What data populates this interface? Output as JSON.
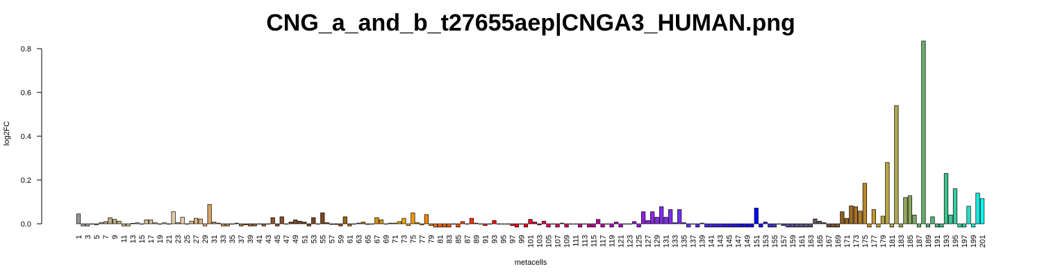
{
  "chart_data": {
    "type": "bar",
    "title": "CNG_a_and_b_t27655aep|CNGA3_HUMAN.png",
    "xlabel": "metacells",
    "ylabel": "log2FC",
    "categories": [
      1,
      null,
      3,
      null,
      5,
      null,
      7,
      null,
      9,
      null,
      11,
      null,
      13,
      null,
      15,
      null,
      17,
      null,
      19,
      null,
      21,
      null,
      23,
      null,
      25,
      null,
      27,
      null,
      29,
      null,
      31,
      null,
      33,
      null,
      35,
      null,
      37,
      null,
      39,
      null,
      41,
      null,
      43,
      null,
      45,
      null,
      47,
      null,
      49,
      null,
      51,
      null,
      53,
      null,
      55,
      null,
      57,
      null,
      59,
      null,
      61,
      null,
      63,
      null,
      65,
      null,
      67,
      null,
      69,
      null,
      71,
      null,
      73,
      null,
      75,
      null,
      77,
      null,
      79,
      null,
      81,
      null,
      83,
      null,
      85,
      null,
      87,
      null,
      89,
      null,
      91,
      null,
      93,
      null,
      95,
      null,
      97,
      null,
      99,
      null,
      101,
      null,
      103,
      null,
      105,
      null,
      107,
      null,
      109,
      null,
      111,
      null,
      113,
      null,
      115,
      null,
      117,
      null,
      119,
      null,
      121,
      null,
      123,
      null,
      125,
      null,
      127,
      null,
      129,
      null,
      131,
      null,
      133,
      null,
      135,
      null,
      137,
      null,
      139,
      null,
      141,
      null,
      143,
      null,
      145,
      null,
      147,
      null,
      149,
      null,
      151,
      null,
      153,
      null,
      155,
      null,
      157,
      null,
      159,
      null,
      161,
      null,
      163,
      null,
      165,
      null,
      167,
      null,
      169,
      null,
      171,
      null,
      173,
      null,
      175,
      null,
      177,
      null,
      179,
      null,
      181,
      null,
      183,
      null,
      185,
      null,
      187,
      null,
      189,
      null,
      191,
      null,
      193,
      null,
      195,
      null,
      197,
      null,
      199,
      null,
      201
    ],
    "values": [
      0.045,
      -0.01,
      -0.01,
      0,
      -0.005,
      0.005,
      0.01,
      0.028,
      0.02,
      0.012,
      -0.01,
      -0.01,
      0.002,
      0.005,
      0,
      0.018,
      0.018,
      0.005,
      0,
      0.005,
      0,
      0.055,
      0.005,
      0.03,
      0,
      0.012,
      0.025,
      0.022,
      -0.01,
      0.088,
      0.008,
      0.003,
      -0.01,
      -0.01,
      0,
      0.003,
      -0.01,
      -0.005,
      -0.01,
      -0.01,
      0,
      -0.01,
      0,
      0.028,
      -0.01,
      0.032,
      0,
      0.008,
      0.018,
      0.012,
      0.008,
      -0.01,
      0.028,
      0,
      0.05,
      0.005,
      -0.003,
      -0.003,
      -0.01,
      0.032,
      -0.01,
      0,
      0.003,
      0.008,
      -0.003,
      0,
      0.028,
      0.018,
      0,
      0.003,
      0.003,
      0.01,
      0.025,
      -0.008,
      0.05,
      0.005,
      -0.005,
      0.042,
      -0.008,
      -0.015,
      -0.015,
      -0.015,
      -0.015,
      0,
      -0.015,
      0.01,
      0,
      0.025,
      0.003,
      0,
      -0.008,
      0,
      0.015,
      0,
      0,
      0,
      -0.008,
      -0.015,
      0,
      -0.015,
      0.02,
      0.008,
      -0.005,
      0.012,
      -0.015,
      0,
      -0.015,
      0.003,
      -0.015,
      0,
      0,
      -0.015,
      0,
      -0.015,
      -0.015,
      0.02,
      -0.015,
      0,
      -0.015,
      0.008,
      -0.015,
      0,
      0,
      0.01,
      -0.015,
      0.055,
      0.015,
      0.055,
      0.03,
      0.078,
      0.03,
      0.065,
      0.005,
      0.065,
      0.005,
      -0.015,
      0,
      -0.015,
      0.003,
      -0.015,
      -0.015,
      -0.015,
      -0.015,
      -0.015,
      -0.015,
      -0.015,
      -0.015,
      -0.015,
      -0.015,
      -0.015,
      0.072,
      -0.015,
      0.008,
      -0.015,
      -0.015,
      0,
      -0.008,
      -0.015,
      -0.015,
      -0.015,
      -0.015,
      -0.015,
      -0.015,
      0.022,
      0.012,
      0.005,
      -0.015,
      -0.015,
      -0.015,
      0.055,
      0.025,
      0.082,
      0.078,
      0.058,
      0.185,
      -0.015,
      0.065,
      -0.015,
      0.035,
      0.28,
      -0.015,
      0.54,
      -0.015,
      0.12,
      0.128,
      0.04,
      -0.015,
      0.835,
      -0.015,
      0.032,
      -0.015,
      -0.015,
      0.23,
      0.04,
      0.16,
      -0.015,
      -0.015,
      0.08,
      -0.015,
      0.14,
      0.115
    ],
    "colors": [
      "#999999",
      "#a09d99",
      "#a7a097",
      "#aca394",
      "#b0a58f",
      "#b5a88a",
      "#b9aa85",
      "#bead80",
      "#c1af7d",
      "#c4b17c",
      "#c8b280",
      "#ccb585",
      "#cfb78a",
      "#d2b990",
      "#d4bb95",
      "#d6bd98",
      "#d8bf9b",
      "#dbc19e",
      "#ddc3a1",
      "#dfc5a3",
      "#e2c7a5",
      "#e4c9a8",
      "#e6cbab",
      "#e8ccad",
      "#e6c5a0",
      "#e3be94",
      "#e0b788",
      "#ddb07c",
      "#d9a970",
      "#d5a266",
      "#d09a5c",
      "#cb9354",
      "#c68c4e",
      "#c18549",
      "#bc7e44",
      "#b7783f",
      "#b2723b",
      "#ad6c37",
      "#a86634",
      "#a36131",
      "#9e5c2f",
      "#99582d",
      "#94542c",
      "#8f512b",
      "#8b4f2a",
      "#874d2a",
      "#844b29",
      "#824a28",
      "#804927",
      "#7e4826",
      "#7d4725",
      "#7c4624",
      "#7b4523",
      "#7a4422",
      "#7b4621",
      "#7f4a20",
      "#854f1e",
      "#8c551c",
      "#945b1a",
      "#9d6218",
      "#a66916",
      "#b07014",
      "#b97712",
      "#c27e10",
      "#ca850e",
      "#d18c0c",
      "#d7920a",
      "#dc9708",
      "#e09c06",
      "#e4a004",
      "#e7a302",
      "#eaa500",
      "#eca400",
      "#eea000",
      "#f09a00",
      "#f19300",
      "#f28c00",
      "#f38500",
      "#f47d00",
      "#f57500",
      "#f66d00",
      "#f76500",
      "#f85d00",
      "#f95500",
      "#fa4d00",
      "#fb4500",
      "#fc3d00",
      "#fc3500",
      "#fd2d00",
      "#fd2500",
      "#fe1d00",
      "#fe1500",
      "#fe0e00",
      "#ff0800",
      "#ff0404",
      "#ff000a",
      "#fe0012",
      "#fd001a",
      "#fb0022",
      "#f9002a",
      "#f60032",
      "#f3003a",
      "#f00042",
      "#ec004a",
      "#e80052",
      "#e4005a",
      "#e00062",
      "#dc006a",
      "#d80072",
      "#d4007a",
      "#d00082",
      "#cc0089",
      "#c80090",
      "#c40098",
      "#c0009f",
      "#bc00a6",
      "#b800ad",
      "#b400b4",
      "#b000ba",
      "#ac00c0",
      "#a800c6",
      "#a405cc",
      "#a00ad2",
      "#9c10d8",
      "#9816dd",
      "#941ce2",
      "#9022e6",
      "#8c26e8",
      "#8829e9",
      "#842beb",
      "#802dec",
      "#7c2fed",
      "#7830ee",
      "#7431ef",
      "#7032ef",
      "#6c32ef",
      "#6530f0",
      "#5e2ef1",
      "#572bf2",
      "#5028f3",
      "#4925f4",
      "#4222f5",
      "#3b1ff6",
      "#341bf7",
      "#2d17f8",
      "#2613f9",
      "#1f0ffa",
      "#180bfb",
      "#1107fc",
      "#0a03fd",
      "#0000ff",
      "#2010f0",
      "#3020e0",
      "#3c2ed2",
      "#4638c6",
      "#4d40bb",
      "#5247b0",
      "#564ca6",
      "#5a509c",
      "#5d5392",
      "#605588",
      "#62567e",
      "#645674",
      "#66566a",
      "#685560",
      "#6a5456",
      "#715445",
      "#7a5638",
      "#84592e",
      "#8e5e27",
      "#986323",
      "#a16a22",
      "#a97224",
      "#b07c27",
      "#b9892b",
      "#bf912f",
      "#c29834",
      "#c09d39",
      "#bca13e",
      "#b7a443",
      "#b1a648",
      "#aaa74d",
      "#a1a753",
      "#96a759",
      "#8aa85e",
      "#7eaa63",
      "#72ab68",
      "#66ad6c",
      "#5bb070",
      "#52b475",
      "#4ab97c",
      "#43be85",
      "#3ec48f",
      "#3aca99",
      "#36cfa4",
      "#31d5af",
      "#2bdaba",
      "#24dfc6",
      "#1ce5d3",
      "#12ebe0",
      "#00ffff"
    ],
    "ylim": [
      -0.02,
      0.84
    ],
    "yticks": [
      {
        "value": 0,
        "label": "0.0"
      },
      0.2,
      0.4,
      0.6,
      0.8
    ],
    "grid": false
  }
}
